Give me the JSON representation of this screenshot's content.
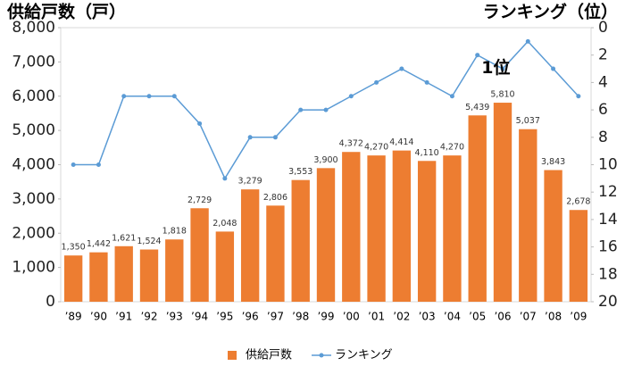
{
  "chart_data": {
    "type": "combo",
    "title": "供給戸数（戸）",
    "y2_title": "ランキング（位）",
    "annotation": "1位",
    "categories": [
      "’89",
      "’90",
      "’91",
      "’92",
      "’93",
      "’94",
      "’95",
      "’96",
      "’97",
      "’98",
      "’99",
      "’00",
      "’01",
      "’02",
      "’03",
      "’04",
      "’05",
      "’06",
      "’07",
      "’08",
      "’09"
    ],
    "series": [
      {
        "name": "供給戸数",
        "type": "bar",
        "color": "#ED7D31",
        "values": [
          1350,
          1442,
          1621,
          1524,
          1818,
          2729,
          2048,
          3279,
          2806,
          3553,
          3900,
          4372,
          4270,
          4414,
          4110,
          4270,
          5439,
          5810,
          5037,
          3843,
          2678
        ],
        "value_labels": [
          "1,350",
          "1,442",
          "1,621",
          "1,524",
          "1,818",
          "2,729",
          "2,048",
          "3,279",
          "2,806",
          "3,553",
          "3,900",
          "4,372",
          "4,270",
          "4,414",
          "4,110",
          "4,270",
          "5,439",
          "5,810",
          "5,037",
          "3,843",
          "2,678"
        ]
      },
      {
        "name": "ランキング",
        "type": "line",
        "axis": "y2",
        "color": "#5B9BD5",
        "values": [
          10,
          10,
          5,
          5,
          5,
          7,
          11,
          8,
          8,
          6,
          6,
          5,
          4,
          3,
          4,
          5,
          2,
          3,
          1,
          3,
          5
        ]
      }
    ],
    "ylim": [
      0,
      8000
    ],
    "yticks": [
      0,
      {
        "value": 1000,
        "label": "1,000"
      },
      {
        "value": 2000,
        "label": "2,000"
      },
      {
        "value": 3000,
        "label": "3,000"
      },
      {
        "value": 4000,
        "label": "4,000"
      },
      {
        "value": 5000,
        "label": "5,000"
      },
      {
        "value": 6000,
        "label": "6,000"
      },
      {
        "value": 7000,
        "label": "7,000"
      },
      {
        "value": 8000,
        "label": "8,000"
      }
    ],
    "y2lim": [
      0,
      20
    ],
    "y2_inverted": true,
    "y2ticks": [
      0,
      2,
      4,
      6,
      8,
      10,
      12,
      14,
      16,
      18,
      20
    ],
    "grid": false,
    "legend": "bottom"
  }
}
